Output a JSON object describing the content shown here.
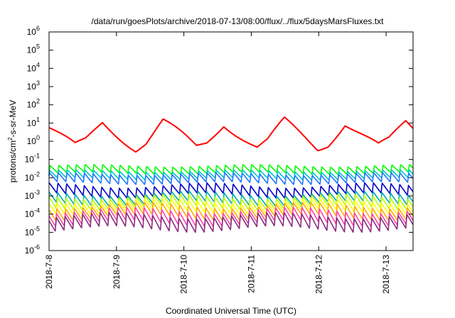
{
  "chart_data": {
    "type": "line",
    "title": "/data/run/goesPlots/archive/2018-07-13/08:00/flux/../flux/5daysMarsFluxes.txt",
    "xlabel": "Coordinated Universal Time (UTC)",
    "ylabel": {
      "prefix": "protons/cm",
      "sup": "2",
      "suffix": "-s-sr-MeV"
    },
    "y_scale": "log",
    "ylim_exponent": [
      -6,
      6
    ],
    "y_tick_exponents": [
      6,
      5,
      4,
      3,
      2,
      1,
      0,
      -1,
      -2,
      -3,
      -4,
      -5,
      -6
    ],
    "y_tick_base": "10",
    "xlim_days": [
      0,
      5.4
    ],
    "x_ticks": [
      {
        "label": "2018-7-8",
        "day": 0
      },
      {
        "label": "2018-7-9",
        "day": 1
      },
      {
        "label": "2018-7-10",
        "day": 2
      },
      {
        "label": "2018-7-11",
        "day": 3
      },
      {
        "label": "2018-7-12",
        "day": 4
      },
      {
        "label": "2018-7-13",
        "day": 5
      }
    ],
    "grid": false,
    "legend": "none",
    "series": [
      {
        "color": "#ff0000",
        "style": "slow",
        "base_log": 0.25,
        "amp": 0.8,
        "off": 0.0,
        "var_amp": 0.28,
        "phase": 0.0
      },
      {
        "color": "#00ff00",
        "style": "saw",
        "base_log": -1.55,
        "amp": 0.42,
        "off": 0.0,
        "var_amp": 0.07,
        "phase": 0.0
      },
      {
        "color": "#00c8c8",
        "style": "saw",
        "base_log": -1.85,
        "amp": 0.42,
        "off": 0.04,
        "var_amp": 0.07,
        "phase": 0.6
      },
      {
        "color": "#1e78ff",
        "style": "saw",
        "base_log": -2.05,
        "amp": 0.5,
        "off": 0.08,
        "var_amp": 0.08,
        "phase": 1.2
      },
      {
        "color": "#0000c8",
        "style": "saw",
        "base_log": -2.7,
        "amp": 0.55,
        "off": 0.11,
        "var_amp": 0.15,
        "phase": 1.8
      },
      {
        "color": "#00aaaa",
        "style": "saw",
        "base_log": -3.15,
        "amp": 0.55,
        "off": 0.14,
        "var_amp": 0.15,
        "phase": 2.4
      },
      {
        "color": "#b4ff00",
        "style": "saw",
        "base_log": -3.35,
        "amp": 0.6,
        "off": 0.17,
        "var_amp": 0.15,
        "phase": 3.0
      },
      {
        "color": "#ffff00",
        "style": "saw",
        "base_log": -3.6,
        "amp": 0.6,
        "off": 0.2,
        "var_amp": 0.15,
        "phase": 3.6
      },
      {
        "color": "#ffaa00",
        "style": "saw",
        "base_log": -3.85,
        "amp": 0.65,
        "off": 0.23,
        "var_amp": 0.18,
        "phase": 4.2
      },
      {
        "color": "#ff44aa",
        "style": "saw",
        "base_log": -4.15,
        "amp": 0.7,
        "off": 0.26,
        "var_amp": 0.18,
        "phase": 4.8
      },
      {
        "color": "#8c2c80",
        "style": "saw",
        "base_log": -4.45,
        "amp": 0.75,
        "off": 0.29,
        "var_amp": 0.18,
        "phase": 5.4
      }
    ]
  }
}
